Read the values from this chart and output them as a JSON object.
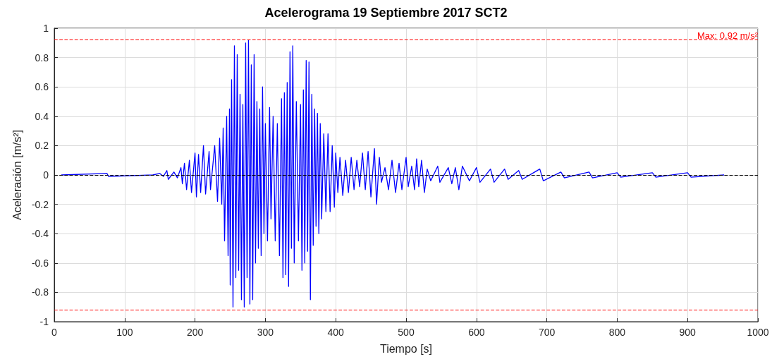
{
  "chart_data": {
    "type": "line",
    "title": "Acelerograma 19 Septiembre 2017 SCT2",
    "xlabel": "Tiempo [s]",
    "ylabel": "Aceleración [m/s²]",
    "xlim": [
      0,
      1000
    ],
    "xticks": [
      0,
      100,
      200,
      300,
      400,
      500,
      600,
      700,
      800,
      900,
      1000
    ],
    "ylim": [
      -1,
      1
    ],
    "yticks": [
      -1,
      -0.8,
      -0.6,
      -0.4,
      -0.2,
      0,
      0.2,
      0.4,
      0.6,
      0.8,
      1
    ],
    "grid": true,
    "marker": "none",
    "line_style": "solid",
    "ref_lines": [
      {
        "axis": "y",
        "value": 0.92,
        "label": "Max: 0.92 m/s²",
        "color": "#ff0000",
        "line_style": "dashed"
      },
      {
        "axis": "y",
        "value": -0.92,
        "label": null,
        "color": "#ff0000",
        "line_style": "dashed"
      },
      {
        "axis": "y",
        "value": 0,
        "label": null,
        "color": "#000000",
        "line_style": "dashed"
      }
    ],
    "series": [
      {
        "color": "#0000ff",
        "x": [
          10,
          75,
          77,
          140,
          150,
          155,
          160,
          162,
          170,
          175,
          180,
          182,
          185,
          188,
          192,
          195,
          200,
          202,
          205,
          208,
          212,
          215,
          220,
          222,
          228,
          232,
          235,
          238,
          240,
          242,
          245,
          247,
          249,
          250,
          252,
          254,
          256,
          258,
          260,
          262,
          264,
          266,
          268,
          270,
          272,
          274,
          276,
          278,
          280,
          282,
          284,
          286,
          288,
          290,
          292,
          294,
          296,
          298,
          300,
          303,
          306,
          308,
          311,
          314,
          317,
          320,
          323,
          325,
          327,
          329,
          331,
          333,
          335,
          337,
          339,
          341,
          344,
          347,
          350,
          352,
          354,
          356,
          358,
          360,
          362,
          364,
          366,
          368,
          370,
          372,
          374,
          376,
          378,
          380,
          383,
          386,
          389,
          392,
          395,
          398,
          400,
          403,
          406,
          410,
          414,
          418,
          422,
          426,
          430,
          434,
          438,
          442,
          446,
          450,
          455,
          458,
          462,
          465,
          470,
          475,
          480,
          485,
          490,
          494,
          500,
          503,
          508,
          512,
          515,
          518,
          522,
          526,
          530,
          535,
          545,
          548,
          560,
          565,
          570,
          575,
          580,
          590,
          600,
          605,
          620,
          625,
          640,
          645,
          660,
          665,
          690,
          695,
          720,
          725,
          760,
          765,
          800,
          805,
          850,
          855,
          900,
          905,
          952
        ],
        "values": [
          0,
          0.01,
          -0.01,
          0,
          0.01,
          -0.01,
          0.03,
          -0.03,
          0.02,
          -0.02,
          0.05,
          -0.06,
          0.08,
          -0.1,
          0.1,
          -0.12,
          0.15,
          -0.15,
          0.14,
          -0.12,
          0.2,
          -0.13,
          0.16,
          -0.1,
          0.2,
          -0.18,
          0.25,
          -0.2,
          0.32,
          -0.45,
          0.4,
          -0.55,
          0.45,
          -0.75,
          0.65,
          -0.9,
          0.88,
          -0.7,
          0.82,
          -0.65,
          0.55,
          -0.85,
          0.48,
          -0.9,
          0.9,
          -0.7,
          0.92,
          -0.88,
          0.75,
          -0.85,
          0.82,
          -0.6,
          0.5,
          -0.5,
          0.45,
          -0.55,
          0.6,
          -0.4,
          0.35,
          -0.45,
          0.46,
          -0.3,
          0.4,
          -0.45,
          0.35,
          -0.55,
          0.52,
          -0.7,
          0.56,
          -0.68,
          0.63,
          -0.76,
          0.84,
          -0.5,
          0.88,
          -0.6,
          0.5,
          -0.45,
          0.48,
          -0.65,
          0.58,
          -0.6,
          0.78,
          -0.52,
          0.77,
          -0.85,
          0.55,
          -0.48,
          0.45,
          -0.35,
          0.42,
          -0.4,
          0.35,
          -0.3,
          0.28,
          -0.25,
          0.28,
          -0.25,
          0.2,
          -0.22,
          0.15,
          -0.12,
          0.12,
          -0.14,
          0.1,
          -0.12,
          0.12,
          -0.1,
          0.1,
          -0.08,
          0.15,
          -0.1,
          0.16,
          -0.15,
          0.18,
          -0.2,
          0.12,
          -0.05,
          0.05,
          -0.1,
          0.1,
          -0.12,
          0.08,
          -0.1,
          0.12,
          -0.08,
          0.06,
          -0.1,
          0.11,
          -0.08,
          0.1,
          -0.12,
          0.04,
          -0.04,
          0.06,
          -0.05,
          0.05,
          -0.06,
          0.05,
          -0.1,
          0.06,
          -0.04,
          0.05,
          -0.05,
          0.04,
          -0.05,
          0.04,
          -0.03,
          0.03,
          -0.03,
          0.04,
          -0.04,
          0.02,
          -0.02,
          0.02,
          -0.02,
          0.015,
          -0.015,
          0.015,
          -0.015,
          0.015,
          -0.015,
          0
        ]
      }
    ]
  }
}
